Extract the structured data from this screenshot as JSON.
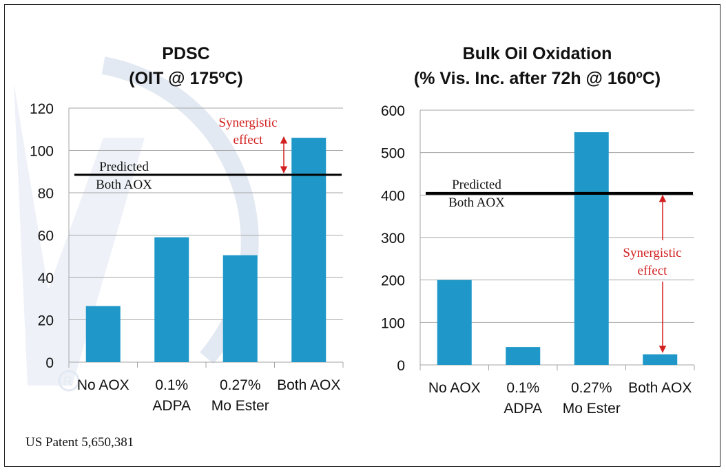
{
  "footer": "US Patent 5,650,381",
  "colors": {
    "bar": "#1f98c9",
    "grid": "#a6a6a6",
    "line": "#000000",
    "annotation": "#d22020",
    "watermark": "#dfe6f1"
  },
  "chart_data": [
    {
      "type": "bar",
      "title": [
        "PDSC",
        "(OIT @ 175ºC)"
      ],
      "categories": [
        [
          "No AOX"
        ],
        [
          "0.1%",
          "ADPA"
        ],
        [
          "0.27%",
          "Mo Ester"
        ],
        [
          "Both AOX"
        ]
      ],
      "values": [
        26.5,
        59,
        50.5,
        106
      ],
      "ylim": [
        0,
        120
      ],
      "yticks": [
        0,
        20,
        40,
        60,
        80,
        100,
        120
      ],
      "grid": true,
      "reference_line": {
        "value": 88.5,
        "label": [
          "Predicted",
          "Both AOX"
        ]
      },
      "annotation": {
        "text": [
          "Synergistic",
          "effect"
        ],
        "from": 88.5,
        "to": 106
      }
    },
    {
      "type": "bar",
      "title": [
        "Bulk Oil Oxidation",
        "(% Vis. Inc. after 72h @ 160ºC)"
      ],
      "categories": [
        [
          "No AOX"
        ],
        [
          "0.1%",
          "ADPA"
        ],
        [
          "0.27%",
          "Mo Ester"
        ],
        [
          "Both AOX"
        ]
      ],
      "values": [
        200,
        42,
        548,
        25
      ],
      "ylim": [
        0,
        600
      ],
      "yticks": [
        0,
        100,
        200,
        300,
        400,
        500,
        600
      ],
      "grid": true,
      "reference_line": {
        "value": 404,
        "label": [
          "Predicted",
          "Both AOX"
        ]
      },
      "annotation": {
        "text": [
          "Synergistic",
          "effect"
        ],
        "from": 404,
        "to": 25
      }
    }
  ]
}
